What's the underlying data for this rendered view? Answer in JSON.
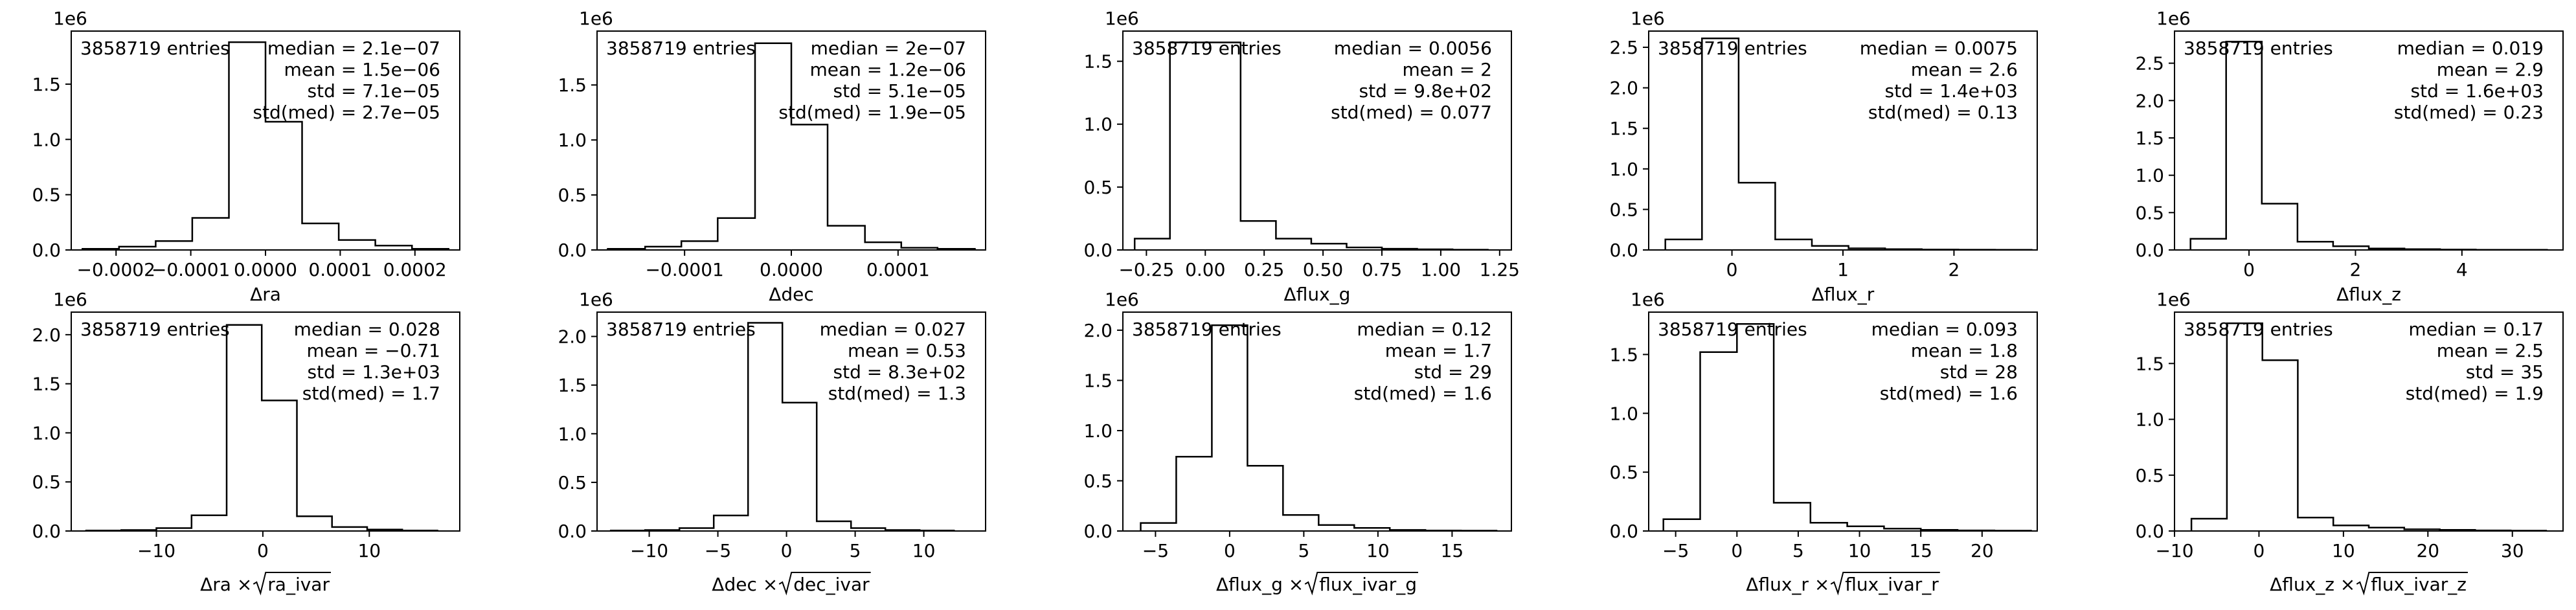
{
  "chart_data": [
    {
      "type": "histogram",
      "entries_label": "3858719 entries",
      "stats": [
        "median = 2.1e−07",
        "mean = 1.5e−06",
        "std = 7.1e−05",
        "std(med) = 2.7e−05"
      ],
      "xlabel": "Δra",
      "xlabel_sqrt": "",
      "xlim": [
        -0.00026,
        0.00026
      ],
      "ylim": [
        0,
        1980000
      ],
      "scale_label": "1e6",
      "xticks": [
        {
          "v": -0.0002,
          "label": "−0.0002"
        },
        {
          "v": -0.0001,
          "label": "−0.0001"
        },
        {
          "v": 0,
          "label": "0.0000"
        },
        {
          "v": 0.0001,
          "label": "0.0001"
        },
        {
          "v": 0.0002,
          "label": "0.0002"
        }
      ],
      "yticks": [
        {
          "v": 0,
          "label": "0.0"
        },
        {
          "v": 500000,
          "label": "0.5"
        },
        {
          "v": 1000000,
          "label": "1.0"
        },
        {
          "v": 1500000,
          "label": "1.5"
        }
      ],
      "bin_edges": [
        -0.000245,
        -0.000196,
        -0.000147,
        -9.8e-05,
        -4.9e-05,
        0.0,
        4.9e-05,
        9.8e-05,
        0.000147,
        0.000196,
        0.000245
      ],
      "counts": [
        10000,
        30000,
        80000,
        290000,
        1880000,
        1160000,
        240000,
        90000,
        40000,
        10000
      ]
    },
    {
      "type": "histogram",
      "entries_label": "3858719 entries",
      "stats": [
        "median = 2e−07",
        "mean = 1.2e−06",
        "std = 5.1e−05",
        "std(med) = 1.9e−05"
      ],
      "xlabel": "Δdec",
      "xlabel_sqrt": "",
      "xlim": [
        -0.000182,
        0.000182
      ],
      "ylim": [
        0,
        1990000
      ],
      "scale_label": "1e6",
      "xticks": [
        {
          "v": -0.0001,
          "label": "−0.0001"
        },
        {
          "v": 0,
          "label": "0.0000"
        },
        {
          "v": 0.0001,
          "label": "0.0001"
        }
      ],
      "yticks": [
        {
          "v": 0,
          "label": "0.0"
        },
        {
          "v": 500000,
          "label": "0.5"
        },
        {
          "v": 1000000,
          "label": "1.0"
        },
        {
          "v": 1500000,
          "label": "1.5"
        }
      ],
      "bin_edges": [
        -0.000172,
        -0.000137,
        -0.000103,
        -6.9e-05,
        -3.4e-05,
        0.0,
        3.4e-05,
        6.9e-05,
        0.000103,
        0.000137,
        0.000172
      ],
      "counts": [
        10000,
        30000,
        80000,
        290000,
        1880000,
        1140000,
        220000,
        70000,
        20000,
        10000
      ]
    },
    {
      "type": "histogram",
      "entries_label": "3858719 entries",
      "stats": [
        "median = 0.0056",
        "mean = 2",
        "std = 9.8e+02",
        "std(med) = 0.077"
      ],
      "xlabel": "Δflux_g",
      "xlabel_sqrt": "",
      "xlim": [
        -0.35,
        1.3
      ],
      "ylim": [
        0,
        1740000
      ],
      "scale_label": "1e6",
      "xticks": [
        {
          "v": -0.25,
          "label": "−0.25"
        },
        {
          "v": 0,
          "label": "0.00"
        },
        {
          "v": 0.25,
          "label": "0.25"
        },
        {
          "v": 0.5,
          "label": "0.50"
        },
        {
          "v": 0.75,
          "label": "0.75"
        },
        {
          "v": 1.0,
          "label": "1.00"
        },
        {
          "v": 1.25,
          "label": "1.25"
        }
      ],
      "yticks": [
        {
          "v": 0,
          "label": "0.0"
        },
        {
          "v": 500000,
          "label": "0.5"
        },
        {
          "v": 1000000,
          "label": "1.0"
        },
        {
          "v": 1500000,
          "label": "1.5"
        }
      ],
      "bin_edges": [
        -0.3,
        -0.15,
        0.0,
        0.15,
        0.3,
        0.45,
        0.6,
        0.75,
        0.9,
        1.05,
        1.2
      ],
      "counts": [
        90000,
        1650000,
        1650000,
        230000,
        90000,
        50000,
        20000,
        10000,
        5000,
        2000
      ]
    },
    {
      "type": "histogram",
      "entries_label": "3858719 entries",
      "stats": [
        "median = 0.0075",
        "mean = 2.6",
        "std = 1.4e+03",
        "std(med) = 0.13"
      ],
      "xlabel": "Δflux_r",
      "xlabel_sqrt": "",
      "xlim": [
        -0.75,
        2.75
      ],
      "ylim": [
        0,
        2700000
      ],
      "scale_label": "1e6",
      "xticks": [
        {
          "v": 0,
          "label": "0"
        },
        {
          "v": 1,
          "label": "1"
        },
        {
          "v": 2,
          "label": "2"
        }
      ],
      "yticks": [
        {
          "v": 0,
          "label": "0.0"
        },
        {
          "v": 500000,
          "label": "0.5"
        },
        {
          "v": 1000000,
          "label": "1.0"
        },
        {
          "v": 1500000,
          "label": "1.5"
        },
        {
          "v": 2000000,
          "label": "2.0"
        },
        {
          "v": 2500000,
          "label": "2.5"
        }
      ],
      "bin_edges": [
        -0.6,
        -0.27,
        0.06,
        0.39,
        0.72,
        1.05,
        1.38,
        1.71,
        2.04,
        2.37,
        2.7
      ],
      "counts": [
        130000,
        2610000,
        830000,
        130000,
        50000,
        20000,
        10000,
        5000,
        3000,
        2000
      ]
    },
    {
      "type": "histogram",
      "entries_label": "3858719 entries",
      "stats": [
        "median = 0.019",
        "mean = 2.9",
        "std = 1.6e+03",
        "std(med) = 0.23"
      ],
      "xlabel": "Δflux_z",
      "xlabel_sqrt": "",
      "xlim": [
        -1.4,
        5.9
      ],
      "ylim": [
        0,
        2930000
      ],
      "scale_label": "1e6",
      "xticks": [
        {
          "v": 0,
          "label": "0"
        },
        {
          "v": 2,
          "label": "2"
        },
        {
          "v": 4,
          "label": "4"
        }
      ],
      "yticks": [
        {
          "v": 0,
          "label": "0.0"
        },
        {
          "v": 500000,
          "label": "0.5"
        },
        {
          "v": 1000000,
          "label": "1.0"
        },
        {
          "v": 1500000,
          "label": "1.5"
        },
        {
          "v": 2000000,
          "label": "2.0"
        },
        {
          "v": 2500000,
          "label": "2.5"
        }
      ],
      "bin_edges": [
        -1.1,
        -0.43,
        0.24,
        0.91,
        1.58,
        2.25,
        2.92,
        3.59,
        4.26,
        4.93,
        5.6
      ],
      "counts": [
        150000,
        2790000,
        620000,
        110000,
        50000,
        20000,
        10000,
        5000,
        3000,
        2000
      ]
    },
    {
      "type": "histogram",
      "entries_label": "3858719 entries",
      "stats": [
        "median = 0.028",
        "mean = −0.71",
        "std = 1.3e+03",
        "std(med) = 1.7"
      ],
      "xlabel": "Δra × ",
      "xlabel_sqrt": "ra_ivar",
      "xlim": [
        -18.0,
        18.5
      ],
      "ylim": [
        0,
        2230000
      ],
      "scale_label": "1e6",
      "xticks": [
        {
          "v": -10,
          "label": "−10"
        },
        {
          "v": 0,
          "label": "0"
        },
        {
          "v": 10,
          "label": "10"
        }
      ],
      "yticks": [
        {
          "v": 0,
          "label": "0.0"
        },
        {
          "v": 500000,
          "label": "0.5"
        },
        {
          "v": 1000000,
          "label": "1.0"
        },
        {
          "v": 1500000,
          "label": "1.5"
        },
        {
          "v": 2000000,
          "label": "2.0"
        }
      ],
      "bin_edges": [
        -16.6,
        -13.3,
        -10.0,
        -6.7,
        -3.4,
        -0.1,
        3.2,
        6.5,
        9.8,
        13.1,
        16.4
      ],
      "counts": [
        5000,
        10000,
        30000,
        160000,
        2100000,
        1330000,
        150000,
        40000,
        15000,
        5000
      ]
    },
    {
      "type": "histogram",
      "entries_label": "3858719 entries",
      "stats": [
        "median = 0.027",
        "mean = 0.53",
        "std = 8.3e+02",
        "std(med) = 1.3"
      ],
      "xlabel": "Δdec × ",
      "xlabel_sqrt": "dec_ivar",
      "xlim": [
        -13.8,
        14.5
      ],
      "ylim": [
        0,
        2250000
      ],
      "scale_label": "1e6",
      "xticks": [
        {
          "v": -10,
          "label": "−10"
        },
        {
          "v": -5,
          "label": "−5"
        },
        {
          "v": 0,
          "label": "0"
        },
        {
          "v": 5,
          "label": "5"
        },
        {
          "v": 10,
          "label": "10"
        }
      ],
      "yticks": [
        {
          "v": 0,
          "label": "0.0"
        },
        {
          "v": 500000,
          "label": "0.5"
        },
        {
          "v": 1000000,
          "label": "1.0"
        },
        {
          "v": 1500000,
          "label": "1.5"
        },
        {
          "v": 2000000,
          "label": "2.0"
        }
      ],
      "bin_edges": [
        -12.8,
        -10.3,
        -7.8,
        -5.3,
        -2.8,
        -0.3,
        2.2,
        4.7,
        7.2,
        9.7,
        12.2
      ],
      "counts": [
        5000,
        10000,
        30000,
        160000,
        2140000,
        1320000,
        100000,
        30000,
        10000,
        5000
      ]
    },
    {
      "type": "histogram",
      "entries_label": "3858719 entries",
      "stats": [
        "median = 0.12",
        "mean = 1.7",
        "std = 29",
        "std(med) = 1.6"
      ],
      "xlabel": "Δflux_g × ",
      "xlabel_sqrt": "flux_ivar_g",
      "xlim": [
        -7.2,
        19.0
      ],
      "ylim": [
        0,
        2180000
      ],
      "scale_label": "1e6",
      "xticks": [
        {
          "v": -5,
          "label": "−5"
        },
        {
          "v": 0,
          "label": "0"
        },
        {
          "v": 5,
          "label": "5"
        },
        {
          "v": 10,
          "label": "10"
        },
        {
          "v": 15,
          "label": "15"
        }
      ],
      "yticks": [
        {
          "v": 0,
          "label": "0.0"
        },
        {
          "v": 500000,
          "label": "0.5"
        },
        {
          "v": 1000000,
          "label": "1.0"
        },
        {
          "v": 1500000,
          "label": "1.5"
        },
        {
          "v": 2000000,
          "label": "2.0"
        }
      ],
      "bin_edges": [
        -6.0,
        -3.6,
        -1.2,
        1.2,
        3.6,
        6.0,
        8.4,
        10.8,
        13.2,
        15.6,
        18.0
      ],
      "counts": [
        80000,
        740000,
        2050000,
        650000,
        160000,
        60000,
        30000,
        10000,
        5000,
        3000
      ]
    },
    {
      "type": "histogram",
      "entries_label": "3858719 entries",
      "stats": [
        "median = 0.093",
        "mean = 1.8",
        "std = 28",
        "std(med) = 1.6"
      ],
      "xlabel": "Δflux_r × ",
      "xlabel_sqrt": "flux_ivar_r",
      "xlim": [
        -7.2,
        24.5
      ],
      "ylim": [
        0,
        1860000
      ],
      "scale_label": "1e6",
      "xticks": [
        {
          "v": -5,
          "label": "−5"
        },
        {
          "v": 0,
          "label": "0"
        },
        {
          "v": 5,
          "label": "5"
        },
        {
          "v": 10,
          "label": "10"
        },
        {
          "v": 15,
          "label": "15"
        },
        {
          "v": 20,
          "label": "20"
        }
      ],
      "yticks": [
        {
          "v": 0,
          "label": "0.0"
        },
        {
          "v": 500000,
          "label": "0.5"
        },
        {
          "v": 1000000,
          "label": "1.0"
        },
        {
          "v": 1500000,
          "label": "1.5"
        }
      ],
      "bin_edges": [
        -6.0,
        -3.0,
        0.0,
        3.0,
        6.0,
        9.0,
        12.0,
        15.0,
        18.0,
        21.0,
        24.0
      ],
      "counts": [
        100000,
        1520000,
        1760000,
        240000,
        70000,
        40000,
        20000,
        10000,
        5000,
        3000
      ]
    },
    {
      "type": "histogram",
      "entries_label": "3858719 entries",
      "stats": [
        "median = 0.17",
        "mean = 2.5",
        "std = 35",
        "std(med) = 1.9"
      ],
      "xlabel": "Δflux_z × ",
      "xlabel_sqrt": "flux_ivar_z",
      "xlim": [
        -10.0,
        36.0
      ],
      "ylim": [
        0,
        1960000
      ],
      "scale_label": "1e6",
      "xticks": [
        {
          "v": -10,
          "label": "−10"
        },
        {
          "v": 0,
          "label": "0"
        },
        {
          "v": 10,
          "label": "10"
        },
        {
          "v": 20,
          "label": "20"
        },
        {
          "v": 30,
          "label": "30"
        }
      ],
      "yticks": [
        {
          "v": 0,
          "label": "0.0"
        },
        {
          "v": 500000,
          "label": "0.5"
        },
        {
          "v": 1000000,
          "label": "1.0"
        },
        {
          "v": 1500000,
          "label": "1.5"
        }
      ],
      "bin_edges": [
        -8.0,
        -3.8,
        0.4,
        4.6,
        8.8,
        13.0,
        17.2,
        21.4,
        25.6,
        29.8,
        34.0
      ],
      "counts": [
        110000,
        1860000,
        1530000,
        120000,
        50000,
        30000,
        15000,
        10000,
        5000,
        3000
      ]
    }
  ]
}
